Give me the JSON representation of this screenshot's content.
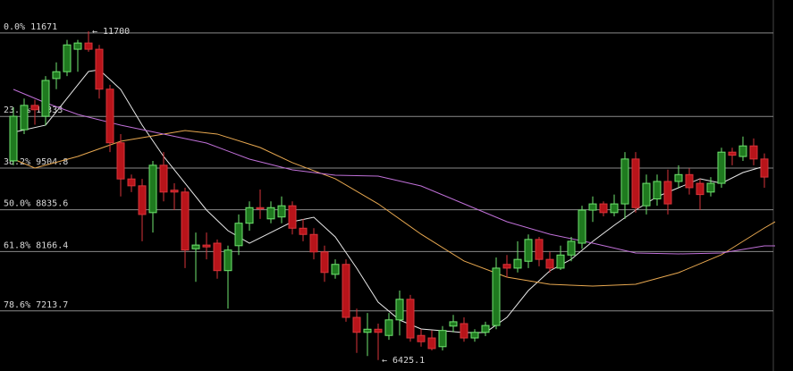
{
  "chart_data": {
    "type": "candlestick",
    "ylim": [
      6250,
      12200
    ],
    "up_color": "#1f7a1f",
    "up_stroke": "#6fe36f",
    "down_color": "#b8141a",
    "down_stroke": "#d8343a",
    "fib_color": "#8a8a8a",
    "open": [
      9620,
      10120,
      10510,
      10335,
      10940,
      11050,
      11410,
      11510,
      11410,
      10770,
      9910,
      9330,
      9220,
      8790,
      9550,
      9150,
      9120,
      8210,
      8270,
      8300,
      7860,
      8260,
      8620,
      8870,
      8690,
      8720,
      8900,
      8540,
      8440,
      8160,
      7800,
      7960,
      7110,
      6870,
      6920,
      6820,
      7070,
      7400,
      6820,
      6780,
      6640,
      6970,
      7010,
      6780,
      6870,
      6980,
      7960,
      7900,
      8010,
      8360,
      8040,
      7900,
      8110,
      8300,
      8830,
      8930,
      8790,
      8930,
      9650,
      8900,
      9010,
      9290,
      9290,
      9400,
      9260,
      9120,
      9260,
      9760,
      9690,
      9860,
      9650
    ],
    "high": [
      10480,
      10620,
      10600,
      10980,
      11200,
      11560,
      11560,
      11700,
      11480,
      10840,
      10050,
      9400,
      9330,
      9620,
      9760,
      9260,
      9190,
      8470,
      8470,
      8360,
      8260,
      8760,
      8970,
      9160,
      8970,
      9050,
      8970,
      8690,
      8540,
      8260,
      8040,
      8040,
      7250,
      7180,
      7010,
      7180,
      7540,
      7470,
      6920,
      6900,
      6970,
      7150,
      7110,
      6920,
      7040,
      8070,
      8110,
      8330,
      8440,
      8400,
      8160,
      8260,
      8400,
      8900,
      9050,
      8970,
      9080,
      9760,
      9760,
      9400,
      9400,
      9480,
      9550,
      9500,
      9330,
      9360,
      9830,
      9830,
      10010,
      9980,
      9740
    ],
    "low": [
      9550,
      10050,
      10200,
      10190,
      10770,
      10980,
      11050,
      11370,
      10620,
      9760,
      9050,
      9120,
      8330,
      8470,
      8970,
      8830,
      7900,
      7680,
      8040,
      7730,
      7250,
      8110,
      8500,
      8690,
      8620,
      8620,
      8440,
      8330,
      8040,
      7680,
      7730,
      7040,
      6540,
      6490,
      6425.1,
      6750,
      6820,
      6720,
      6640,
      6580,
      6580,
      6870,
      6720,
      6720,
      6810,
      6920,
      7750,
      7830,
      7900,
      7930,
      7830,
      7870,
      8010,
      8210,
      8640,
      8730,
      8730,
      8690,
      8790,
      8760,
      8900,
      8760,
      9190,
      9080,
      8830,
      9050,
      9190,
      9550,
      9620,
      9550,
      9190
    ],
    "close": [
      10335,
      10510,
      10440,
      10910,
      11050,
      11480,
      11510,
      11410,
      10770,
      9910,
      9330,
      9220,
      8760,
      9550,
      9120,
      9120,
      8190,
      8270,
      8240,
      7860,
      8190,
      8620,
      8870,
      8850,
      8870,
      8900,
      8540,
      8440,
      8160,
      7830,
      7960,
      7110,
      6870,
      6920,
      6870,
      7070,
      7400,
      6780,
      6720,
      6610,
      6900,
      7040,
      6780,
      6870,
      6980,
      7900,
      7900,
      8040,
      8360,
      8040,
      7900,
      8110,
      8330,
      8830,
      8930,
      8790,
      8930,
      9650,
      8870,
      9260,
      9290,
      8930,
      9400,
      9190,
      9080,
      9260,
      9760,
      9710,
      9860,
      9650,
      9360
    ],
    "moving_averages": [
      {
        "color": "#e8e8e8",
        "x": [
          0,
          3,
          6,
          7,
          8,
          10,
          12,
          14,
          16,
          18,
          20,
          22,
          24,
          26,
          28,
          30,
          32,
          34,
          36,
          38,
          40,
          42,
          44,
          46,
          48,
          50,
          52,
          54,
          56,
          58,
          60,
          62,
          64,
          66,
          68,
          70
        ],
        "values": [
          10078,
          10193,
          10838,
          11053,
          11082,
          10766,
          10193,
          9691,
          9261,
          8831,
          8501,
          8300,
          8472,
          8644,
          8716,
          8401,
          7899,
          7354,
          7067,
          6924,
          6895,
          6867,
          6867,
          7110,
          7540,
          7856,
          8042,
          8329,
          8587,
          8831,
          9046,
          9189,
          9333,
          9261,
          9433,
          9533
        ]
      },
      {
        "color": "#e8a850",
        "x": [
          0,
          2,
          6,
          10,
          14,
          16,
          19,
          23,
          26,
          30,
          34,
          38,
          42,
          46,
          50,
          54,
          58,
          62,
          66,
          70,
          71
        ],
        "values": [
          9648,
          9505,
          9691,
          9935,
          10050,
          10107,
          10050,
          9834,
          9591,
          9333,
          8931,
          8444,
          8014,
          7756,
          7641,
          7612,
          7641,
          7827,
          8114,
          8544,
          8644
        ]
      },
      {
        "color": "#c070d8",
        "x": [
          0,
          3,
          6,
          10,
          14,
          18,
          22,
          26,
          30,
          34,
          38,
          42,
          46,
          50,
          54,
          58,
          62,
          66,
          70,
          71
        ],
        "values": [
          10766,
          10551,
          10365,
          10193,
          10050,
          9906,
          9648,
          9476,
          9390,
          9376,
          9218,
          8931,
          8644,
          8444,
          8300,
          8143,
          8128,
          8143,
          8257,
          8257
        ]
      }
    ],
    "fib_levels": [
      {
        "value": 11671,
        "label": "0.0% 11671"
      },
      {
        "value": 10333,
        "label": "23.6% 10333"
      },
      {
        "value": 9504.8,
        "label": "38.2% 9504.8"
      },
      {
        "value": 8835.6,
        "label": "50.0% 8835.6"
      },
      {
        "value": 8166.4,
        "label": "61.8% 8166.4"
      },
      {
        "value": 7213.7,
        "label": "78.6% 7213.7"
      }
    ],
    "annotations": [
      {
        "text": "← 11700",
        "index": 7,
        "value": 11700
      },
      {
        "text": "← 6425.1",
        "index": 34,
        "value": 6425.1
      }
    ]
  }
}
